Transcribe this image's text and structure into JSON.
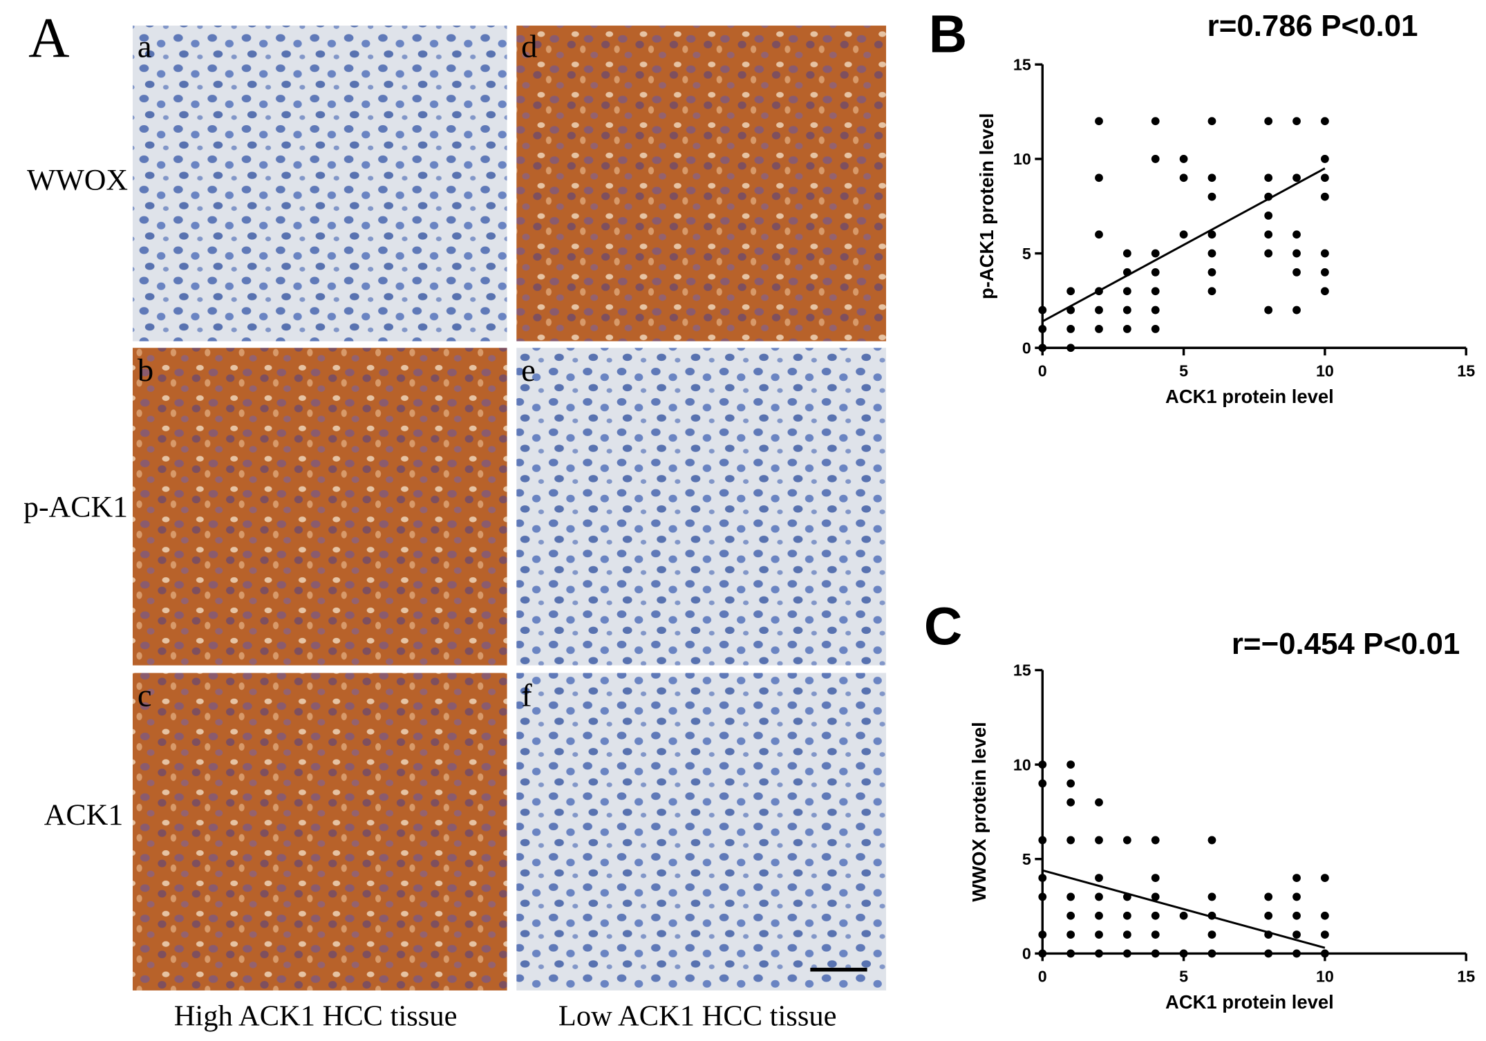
{
  "panel_a": {
    "label": "A",
    "image_labels": [
      "a",
      "b",
      "c",
      "d",
      "e",
      "f"
    ],
    "row_labels": [
      "WWOX",
      "p-ACK1",
      "ACK1"
    ],
    "column_labels": [
      "High ACK1 HCC tissue",
      "Low ACK1 HCC tissue"
    ]
  },
  "chart_data": [
    {
      "type": "scatter",
      "panel_label": "B",
      "title": "r=0.786  P<0.01",
      "xlabel": "ACK1 protein level",
      "ylabel": "p-ACK1 protein level",
      "x": [
        0,
        0,
        0,
        1,
        1,
        1,
        1,
        2,
        2,
        2,
        2,
        2,
        2,
        3,
        3,
        3,
        3,
        3,
        4,
        4,
        4,
        4,
        4,
        4,
        4,
        5,
        5,
        5,
        6,
        6,
        6,
        6,
        6,
        6,
        6,
        8,
        8,
        8,
        8,
        8,
        8,
        8,
        9,
        9,
        9,
        9,
        9,
        9,
        10,
        10,
        10,
        10,
        10,
        10,
        10
      ],
      "values": [
        0,
        1,
        2,
        0,
        1,
        2,
        3,
        1,
        2,
        3,
        6,
        9,
        12,
        1,
        2,
        3,
        4,
        5,
        1,
        2,
        3,
        4,
        5,
        10,
        12,
        6,
        9,
        10,
        3,
        4,
        5,
        6,
        8,
        9,
        12,
        2,
        5,
        6,
        7,
        8,
        9,
        12,
        2,
        4,
        5,
        6,
        9,
        12,
        3,
        4,
        5,
        8,
        9,
        10,
        12
      ],
      "color": "#000000",
      "trend_line": {
        "x": [
          0,
          10
        ],
        "y": [
          1.4,
          9.5
        ]
      },
      "xlim": [
        0,
        15
      ],
      "ylim": [
        0,
        15
      ],
      "xticks": [
        0,
        5,
        10,
        15
      ],
      "yticks": [
        0,
        5,
        10,
        15
      ]
    },
    {
      "type": "scatter",
      "panel_label": "C",
      "title": "r=−0.454  P<0.01",
      "xlabel": "ACK1 protein level",
      "ylabel": "WWOX protein level",
      "x": [
        0,
        0,
        0,
        0,
        0,
        0,
        0,
        1,
        1,
        1,
        1,
        1,
        1,
        1,
        1,
        2,
        2,
        2,
        2,
        2,
        2,
        2,
        3,
        3,
        3,
        3,
        3,
        4,
        4,
        4,
        4,
        4,
        4,
        5,
        5,
        6,
        6,
        6,
        6,
        6,
        8,
        8,
        8,
        8,
        9,
        9,
        9,
        9,
        9,
        10,
        10,
        10,
        10
      ],
      "values": [
        0,
        1,
        3,
        4,
        6,
        9,
        10,
        0,
        1,
        2,
        3,
        6,
        8,
        9,
        10,
        0,
        1,
        2,
        3,
        4,
        6,
        8,
        0,
        1,
        2,
        3,
        6,
        0,
        1,
        2,
        3,
        4,
        6,
        0,
        2,
        0,
        1,
        2,
        3,
        6,
        0,
        1,
        2,
        3,
        0,
        1,
        2,
        3,
        4,
        0,
        1,
        2,
        4
      ],
      "color": "#000000",
      "trend_line": {
        "x": [
          0,
          10
        ],
        "y": [
          4.4,
          0.3
        ]
      },
      "xlim": [
        0,
        15
      ],
      "ylim": [
        0,
        15
      ],
      "xticks": [
        0,
        5,
        10,
        15
      ],
      "yticks": [
        0,
        5,
        10,
        15
      ]
    }
  ]
}
